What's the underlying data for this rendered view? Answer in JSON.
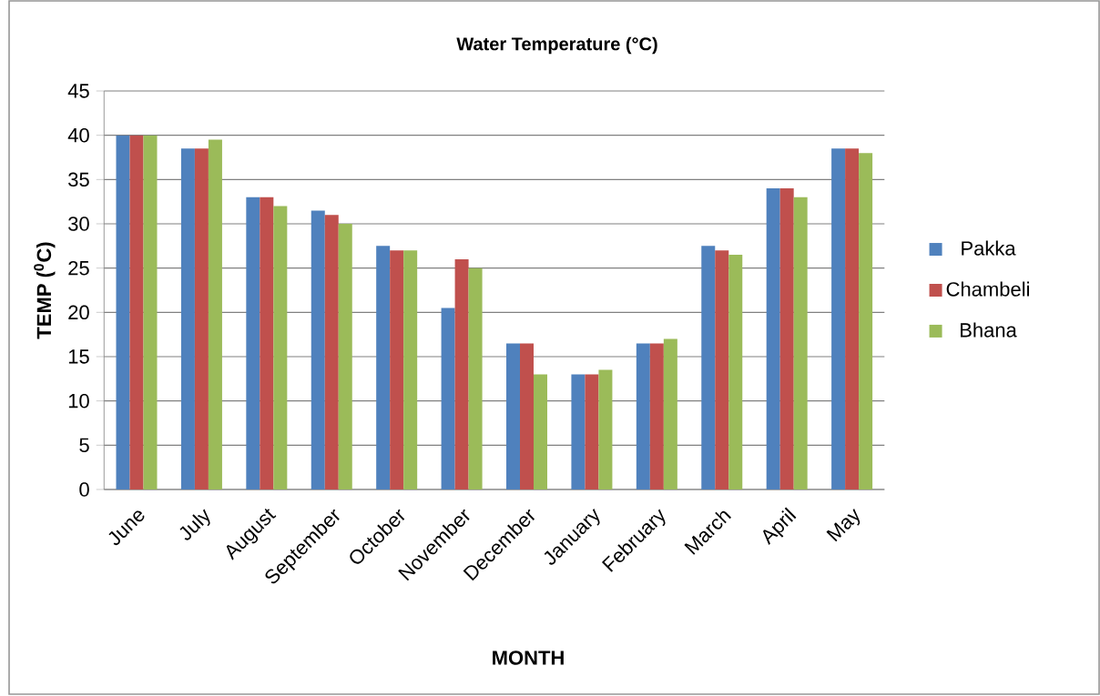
{
  "chart_data": {
    "type": "bar",
    "title": "Water Temperature (°C)",
    "xlabel": "MONTH",
    "ylabel": "TEMP ($^{0}$C)",
    "categories": [
      "June",
      "July",
      "August",
      "September",
      "October",
      "November",
      "December",
      "January",
      "February",
      "March",
      "April",
      "May"
    ],
    "series": [
      {
        "name": "Pakka",
        "color": "#4f81bd",
        "values": [
          40,
          38.5,
          33,
          31.5,
          27.5,
          20.5,
          16.5,
          13,
          16.5,
          27.5,
          34,
          38.5
        ]
      },
      {
        "name": "Chambeli",
        "color": "#c0504d",
        "values": [
          40,
          38.5,
          33,
          31,
          27,
          26,
          16.5,
          13,
          16.5,
          27,
          34,
          38.5
        ]
      },
      {
        "name": "Bhana",
        "color": "#9bbb59",
        "values": [
          40,
          39.5,
          32,
          30,
          27,
          25,
          13,
          13.5,
          17,
          26.5,
          33,
          38
        ]
      }
    ],
    "ylim": [
      0,
      45
    ],
    "yticks": [
      0,
      5,
      10,
      15,
      20,
      25,
      30,
      35,
      40,
      45
    ],
    "grid": "y",
    "legend": "right"
  }
}
